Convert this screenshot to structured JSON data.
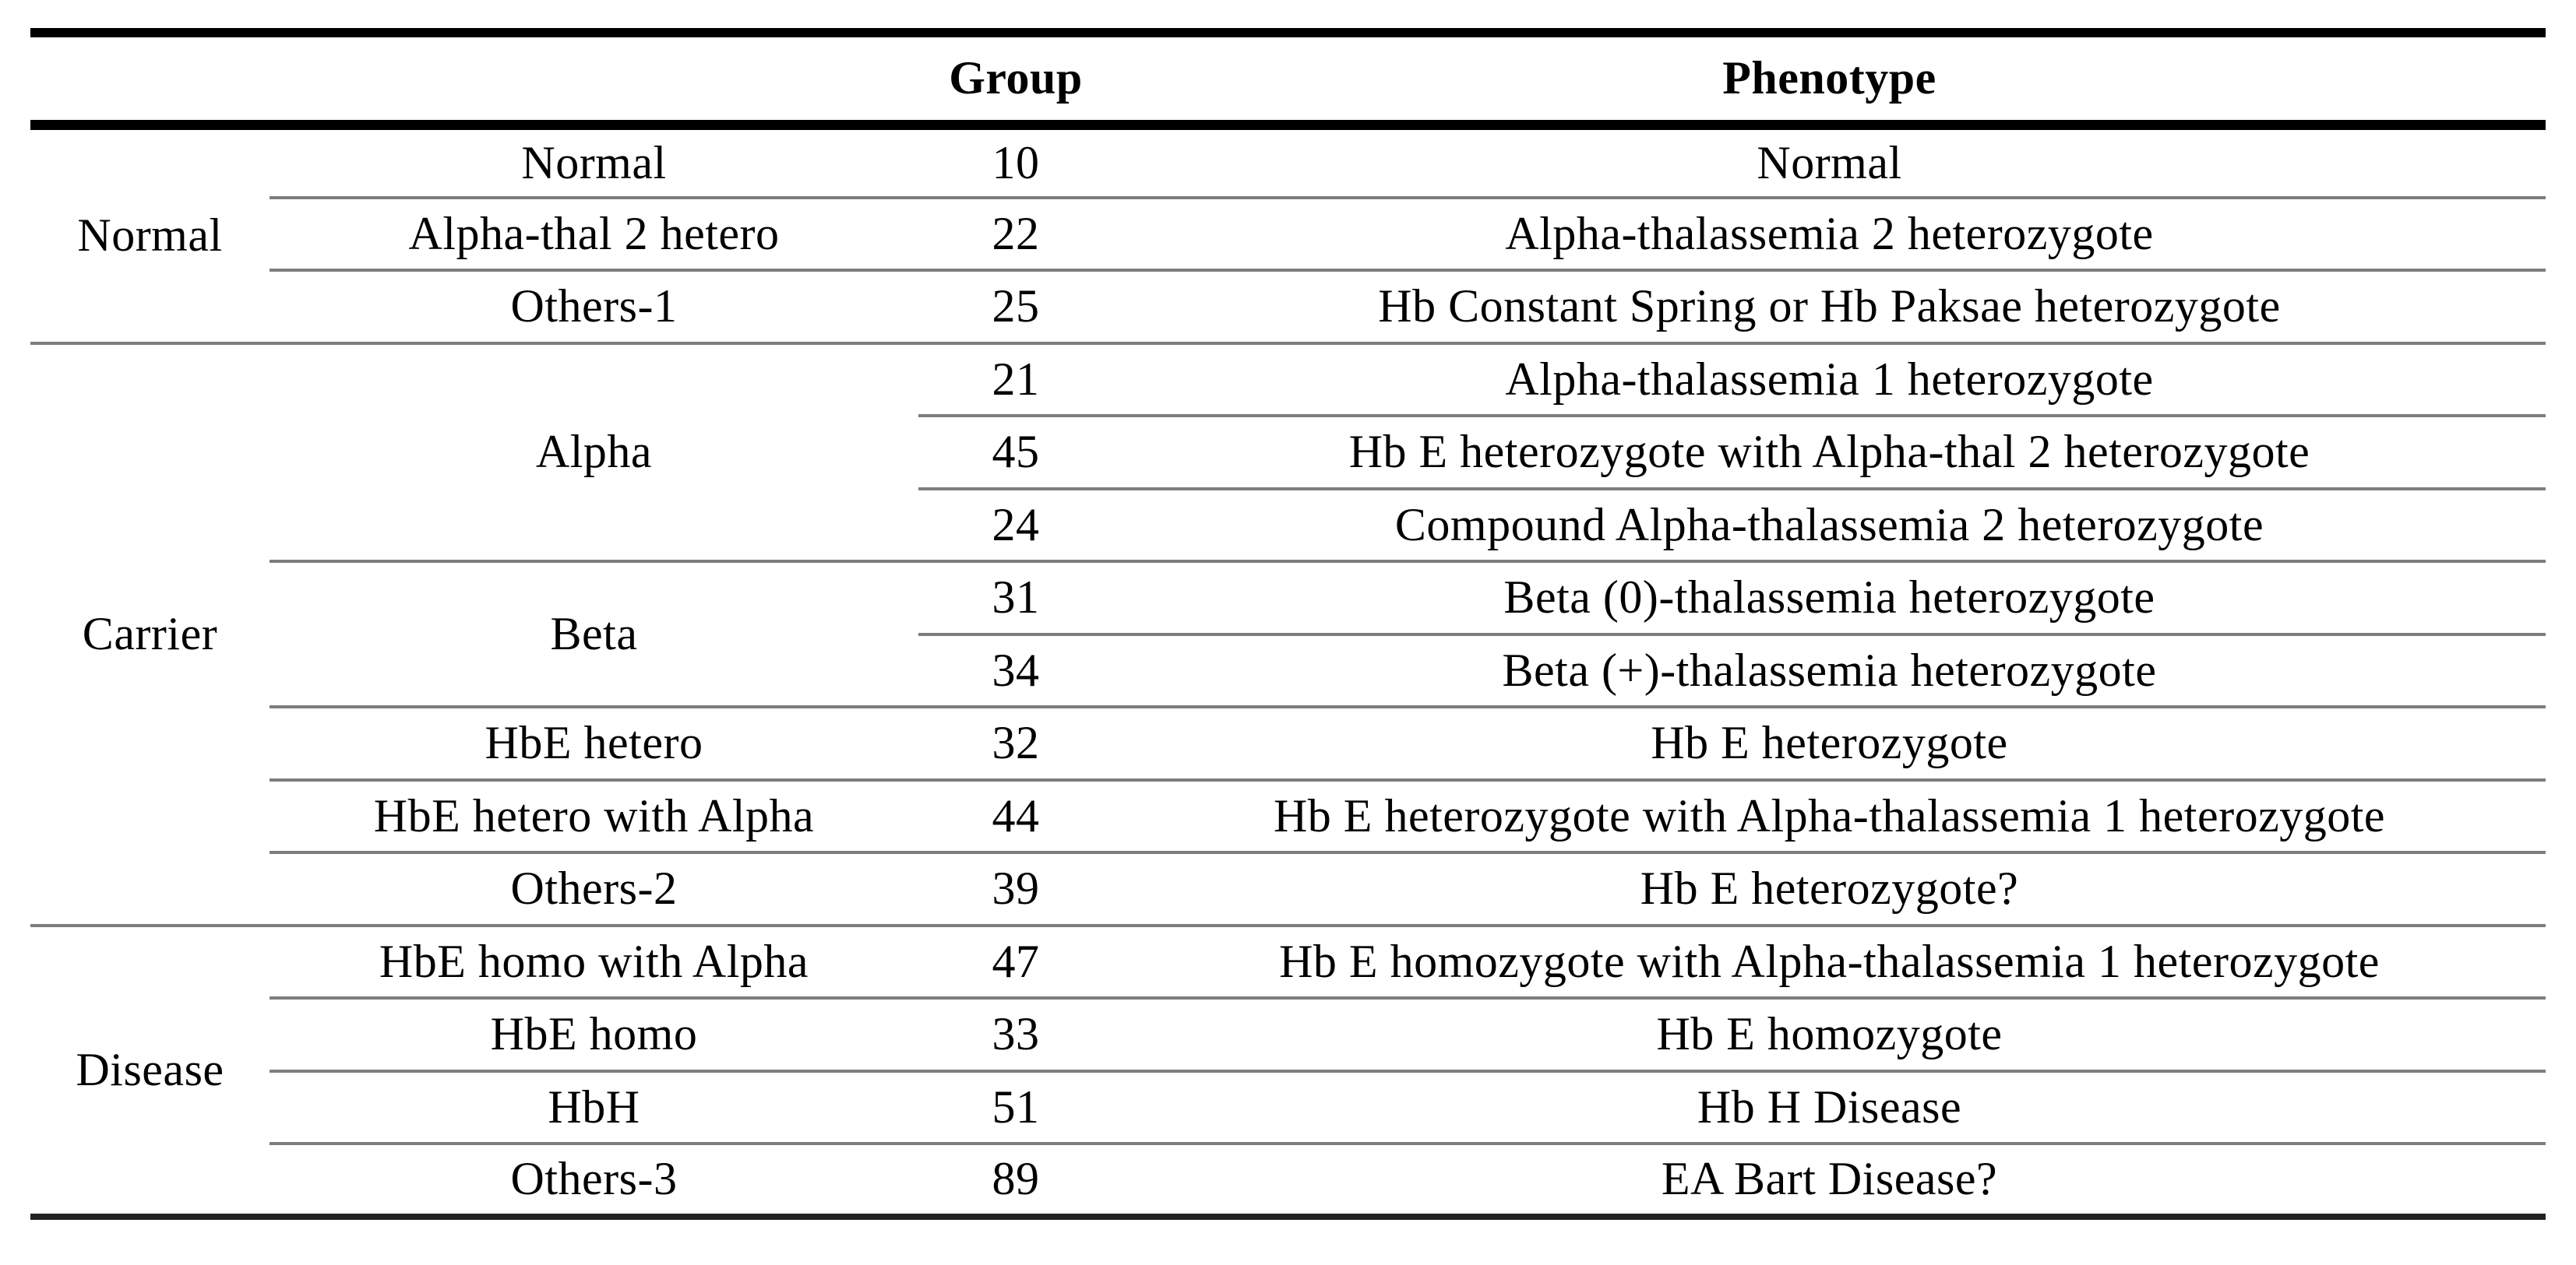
{
  "table_header": {
    "category": "",
    "subgroup": "",
    "group": "Group",
    "phenotype": "Phenotype"
  },
  "rows": [
    {
      "category": "Normal",
      "subgroup": "Normal",
      "group": "10",
      "phenotype": "Normal"
    },
    {
      "subgroup": "Alpha-thal 2 hetero",
      "group": "22",
      "phenotype": "Alpha-thalassemia 2 heterozygote"
    },
    {
      "subgroup": "Others-1",
      "group": "25",
      "phenotype": "Hb Constant Spring or Hb Paksae heterozygote"
    },
    {
      "category": "Carrier",
      "subgroup": "Alpha",
      "group": "21",
      "phenotype": "Alpha-thalassemia 1 heterozygote"
    },
    {
      "group": "45",
      "phenotype": "Hb E heterozygote with Alpha-thal 2 heterozygote"
    },
    {
      "group": "24",
      "phenotype": "Compound Alpha-thalassemia 2 heterozygote"
    },
    {
      "subgroup": "Beta",
      "group": "31",
      "phenotype": "Beta (0)-thalassemia heterozygote"
    },
    {
      "group": "34",
      "phenotype": "Beta (+)-thalassemia heterozygote"
    },
    {
      "subgroup": "HbE hetero",
      "group": "32",
      "phenotype": "Hb E heterozygote"
    },
    {
      "subgroup": "HbE hetero with Alpha",
      "group": "44",
      "phenotype": "Hb E heterozygote with Alpha-thalassemia 1 heterozygote"
    },
    {
      "subgroup": "Others-2",
      "group": "39",
      "phenotype": "Hb E heterozygote?"
    },
    {
      "category": "Disease",
      "subgroup": "HbE homo with Alpha",
      "group": "47",
      "phenotype": "Hb E homozygote with Alpha-thalassemia 1 heterozygote"
    },
    {
      "subgroup": "HbE homo",
      "group": "33",
      "phenotype": "Hb E homozygote"
    },
    {
      "subgroup": "HbH",
      "group": "51",
      "phenotype": "Hb H Disease"
    },
    {
      "subgroup": "Others-3",
      "group": "89",
      "phenotype": "EA Bart Disease?"
    }
  ],
  "style": {
    "background": "#ffffff",
    "text_color": "#000000",
    "thick_rule_color": "#000000",
    "thin_rule_color": "#7d7d7d"
  }
}
